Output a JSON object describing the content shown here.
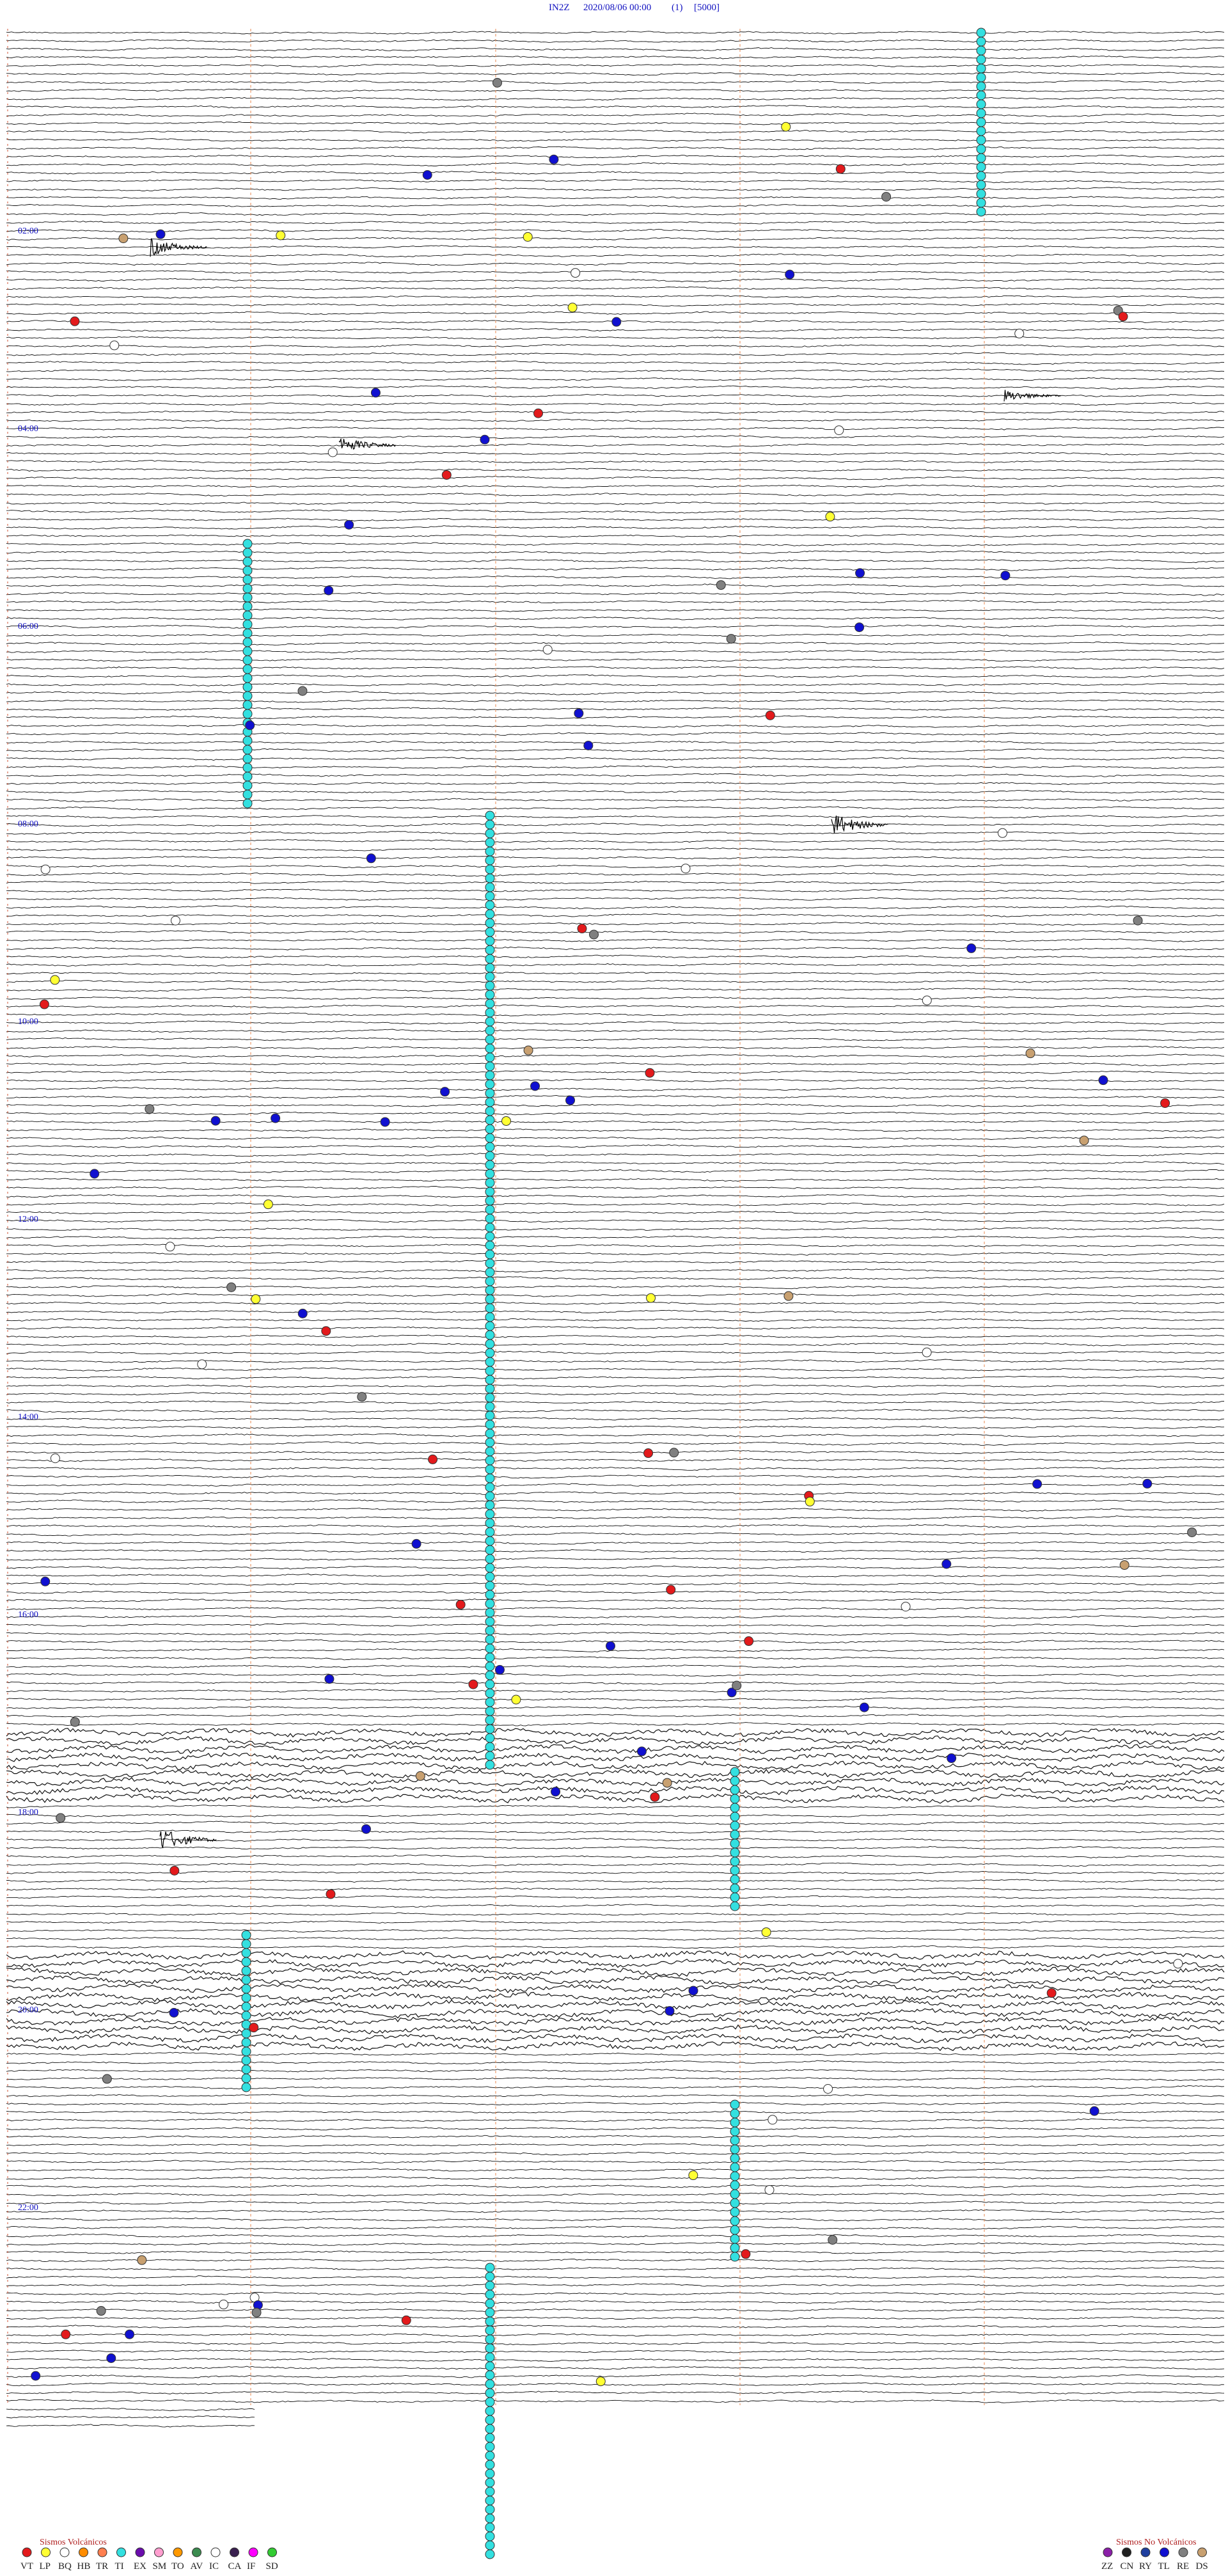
{
  "header": {
    "station": "IN2Z",
    "datetime": "2020/08/06 00:00",
    "page": "(1)",
    "scale": "[5000]"
  },
  "time_labels": [
    "02:00",
    "04:00",
    "06:00",
    "08:00",
    "10:00",
    "12:00",
    "14:00",
    "16:00",
    "18:00",
    "20:00",
    "22:00"
  ],
  "legend_volcanic": {
    "title": "Sismos Volcánicos",
    "items": [
      {
        "code": "VT",
        "color": "#e31a1c"
      },
      {
        "code": "LP",
        "color": "#ffff33"
      },
      {
        "code": "BQ",
        "color": "#ffffff"
      },
      {
        "code": "HB",
        "color": "#ff8c00"
      },
      {
        "code": "TR",
        "color": "#ff7f50"
      },
      {
        "code": "TI",
        "color": "#33e0e0"
      },
      {
        "code": "EX",
        "color": "#6a0dad"
      },
      {
        "code": "SM",
        "color": "#ff9ecf"
      },
      {
        "code": "TO",
        "color": "#ff9900"
      },
      {
        "code": "AV",
        "color": "#3c8c50"
      },
      {
        "code": "IC",
        "color": "#ffffff"
      },
      {
        "code": "CA",
        "color": "#3a2050"
      },
      {
        "code": "IF",
        "color": "#ff00ff"
      },
      {
        "code": "SD",
        "color": "#33cc33"
      }
    ]
  },
  "legend_non_volcanic": {
    "title": "Sismos No Volcánicos",
    "items": [
      {
        "code": "ZZ",
        "color": "#8b1fa8"
      },
      {
        "code": "CN",
        "color": "#202020"
      },
      {
        "code": "RY",
        "color": "#1f3f9f"
      },
      {
        "code": "TL",
        "color": "#1010d0"
      },
      {
        "code": "RE",
        "color": "#808080"
      },
      {
        "code": "DS",
        "color": "#c8a070"
      }
    ]
  }
}
